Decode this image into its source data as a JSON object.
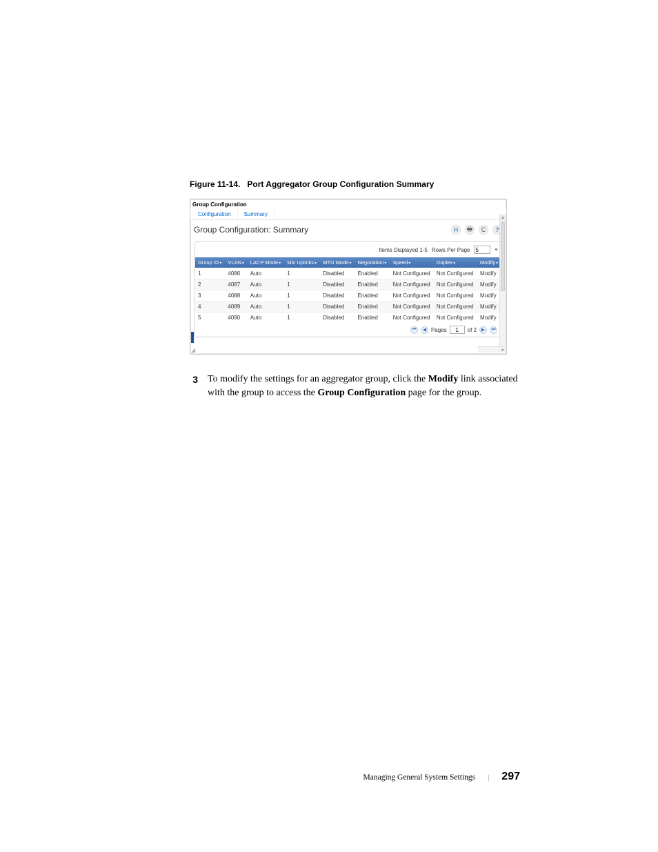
{
  "figure": {
    "label": "Figure 11-14.",
    "title": "Port Aggregator Group Configuration Summary"
  },
  "screenshot": {
    "section_label": "Group Configuration",
    "tabs": {
      "configuration": "Configuration",
      "summary": "Summary"
    },
    "panel_title": "Group Configuration: Summary",
    "toolbar": {
      "save": "H",
      "print": "🖶",
      "refresh": "C",
      "help": "?"
    },
    "items_displayed": "Items Displayed 1-5",
    "rows_per_page_label": "Rows Per Page",
    "rows_per_page_value": "5",
    "columns": [
      "Group ID",
      "VLAN",
      "LACP Mode",
      "Min Uplinks",
      "MTU Mode",
      "Negotiation",
      "Speed",
      "Duplex",
      "Modify"
    ],
    "rows": [
      [
        "1",
        "4086",
        "Auto",
        "1",
        "Disabled",
        "Enabled",
        "Not Configured",
        "Not Configured",
        "Modify"
      ],
      [
        "2",
        "4087",
        "Auto",
        "1",
        "Disabled",
        "Enabled",
        "Not Configured",
        "Not Configured",
        "Modify"
      ],
      [
        "3",
        "4088",
        "Auto",
        "1",
        "Disabled",
        "Enabled",
        "Not Configured",
        "Not Configured",
        "Modify"
      ],
      [
        "4",
        "4089",
        "Auto",
        "1",
        "Disabled",
        "Enabled",
        "Not Configured",
        "Not Configured",
        "Modify"
      ],
      [
        "5",
        "4090",
        "Auto",
        "1",
        "Disabled",
        "Enabled",
        "Not Configured",
        "Not Configured",
        "Modify"
      ]
    ],
    "pager": {
      "pages_label": "Pages",
      "current": "1",
      "of_label": "of 2"
    }
  },
  "step": {
    "number": "3",
    "pre": "To modify the settings for an aggregator group, click the ",
    "bold1": "Modify",
    "mid": " link associated with the group to access the ",
    "bold2": "Group Configuration",
    "post": " page for the group."
  },
  "footer": {
    "title": "Managing General System Settings",
    "page": "297"
  },
  "colors": {
    "link": "#0066cc",
    "th_bg_top": "#5e8bc7",
    "th_bg_bottom": "#3f6faf"
  }
}
